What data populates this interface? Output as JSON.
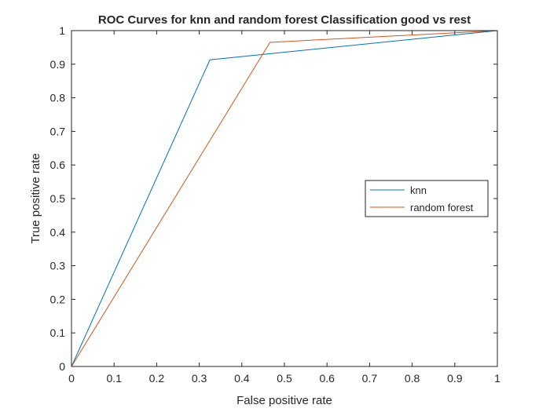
{
  "chart_data": {
    "type": "line",
    "title": "ROC Curves for knn and random forest Classification good vs rest",
    "xlabel": "False positive rate",
    "ylabel": "True positive rate",
    "xlim": [
      0,
      1
    ],
    "ylim": [
      0,
      1
    ],
    "xticks": [
      0,
      0.1,
      0.2,
      0.3,
      0.4,
      0.5,
      0.6,
      0.7,
      0.8,
      0.9,
      1
    ],
    "yticks": [
      0,
      0.1,
      0.2,
      0.3,
      0.4,
      0.5,
      0.6,
      0.7,
      0.8,
      0.9,
      1
    ],
    "xtick_labels": [
      "0",
      "0.1",
      "0.2",
      "0.3",
      "0.4",
      "0.5",
      "0.6",
      "0.7",
      "0.8",
      "0.9",
      "1"
    ],
    "ytick_labels": [
      "0",
      "0.1",
      "0.2",
      "0.3",
      "0.4",
      "0.5",
      "0.6",
      "0.7",
      "0.8",
      "0.9",
      "1"
    ],
    "grid": false,
    "legend_position": "middle-right",
    "series": [
      {
        "name": "knn",
        "color": "#0072BD",
        "x": [
          0,
          0.325,
          1
        ],
        "y": [
          0,
          0.913,
          1
        ]
      },
      {
        "name": "random forest",
        "color": "#D95319",
        "x": [
          0,
          0.466,
          1
        ],
        "y": [
          0,
          0.965,
          1
        ]
      }
    ]
  }
}
